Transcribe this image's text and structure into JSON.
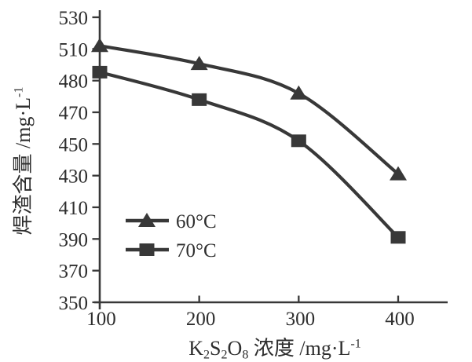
{
  "figure": {
    "background": "#ffffff",
    "ink_color": "#383838"
  },
  "chart_data": {
    "type": "line",
    "title": "",
    "xlabel": "K₂S₂O₈ 浓度 /mg·L⁻¹",
    "ylabel": "焊渣含量 /mg·L⁻¹",
    "x": [
      100,
      200,
      300,
      400
    ],
    "x_tick_labels": [
      "100",
      "200",
      "300",
      "400"
    ],
    "y_tick_labels": [
      "530",
      "510",
      "480",
      "470",
      "450",
      "430",
      "410",
      "390",
      "370",
      "350"
    ],
    "xlim": [
      100,
      450
    ],
    "ylim": [
      350,
      530
    ],
    "grid": false,
    "legend_position": "inside lower-left",
    "series": [
      {
        "name": "60°C",
        "marker": "triangle",
        "color": "#383838",
        "values": [
          512,
          496,
          476,
          431
        ]
      },
      {
        "name": "70°C",
        "marker": "square",
        "color": "#383838",
        "values": [
          488,
          474,
          452,
          391
        ]
      }
    ]
  }
}
